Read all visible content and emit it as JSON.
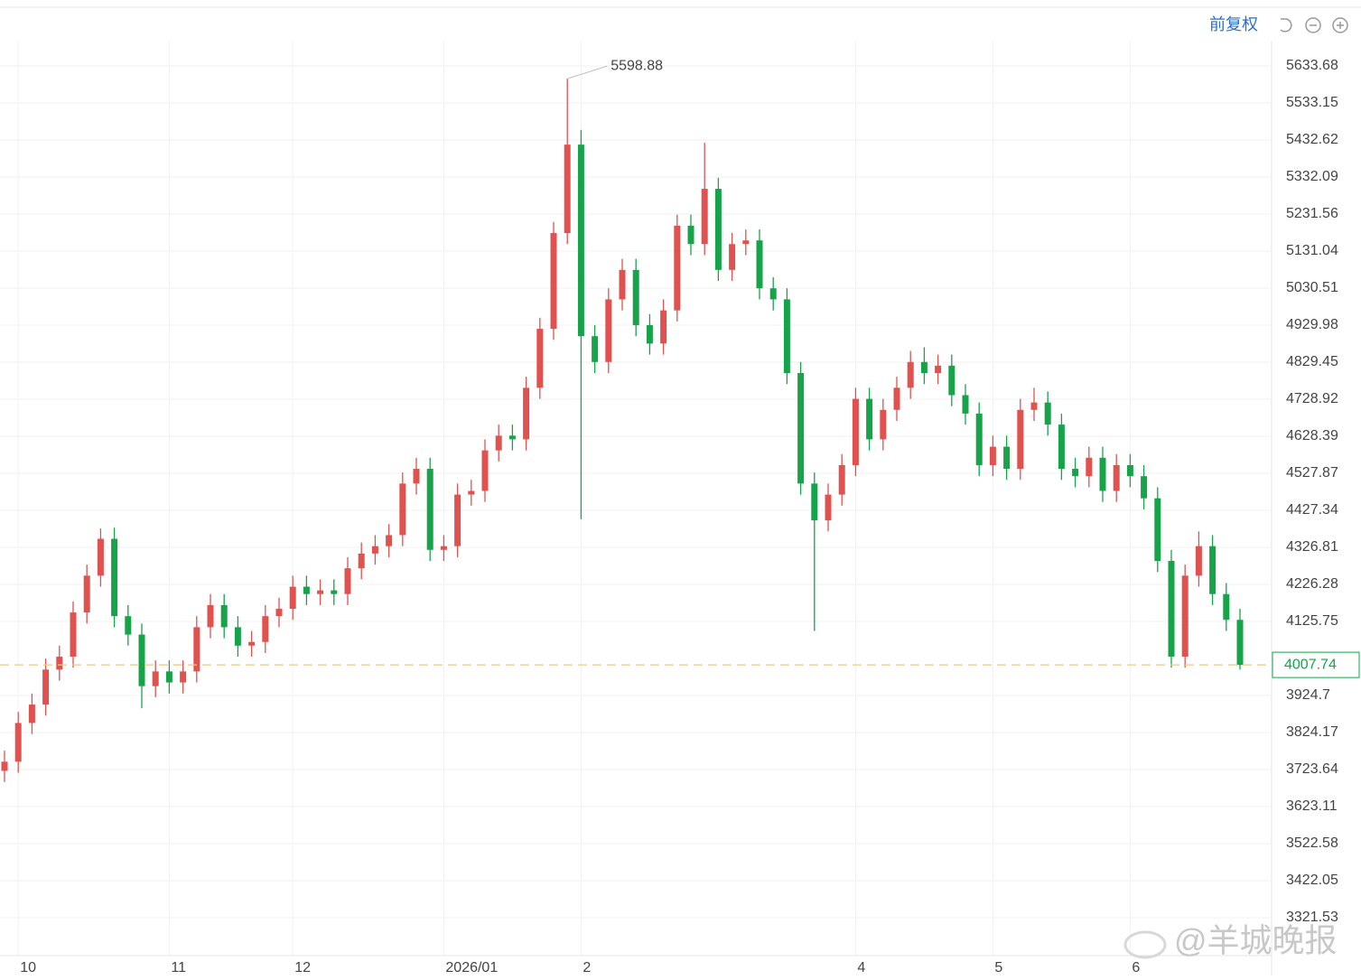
{
  "toolbar": {
    "adjust": "前复权"
  },
  "watermark": "@羊城晚报",
  "chart_data": {
    "type": "candlestick",
    "up_color": "#e0524f",
    "down_color": "#16a34a",
    "ylim": [
      3218.5,
      5702.3
    ],
    "yticks": [
      5633.68,
      5533.15,
      5432.62,
      5332.09,
      5231.56,
      5131.04,
      5030.51,
      4929.98,
      4829.45,
      4728.92,
      4628.39,
      4527.87,
      4427.34,
      4326.81,
      4226.28,
      4125.75,
      3924.7,
      3824.17,
      3723.64,
      3623.11,
      3522.58,
      3422.05,
      3321.53
    ],
    "xticks": [
      {
        "value": 1,
        "label": "10"
      },
      {
        "value": 12,
        "label": "11"
      },
      {
        "value": 21,
        "label": "12"
      },
      {
        "value": 32,
        "label": "2026/01"
      },
      {
        "value": 42,
        "label": "2"
      },
      {
        "value": 62,
        "label": "4"
      },
      {
        "value": 72,
        "label": "5"
      },
      {
        "value": 82,
        "label": "6"
      }
    ],
    "grid": true,
    "open": [
      3720,
      3745,
      3850,
      3900,
      3995,
      4030,
      4150,
      4250,
      4350,
      4140,
      4090,
      3950,
      3990,
      3960,
      3990,
      4110,
      4170,
      4110,
      4060,
      4070,
      4140,
      4160,
      4220,
      4200,
      4210,
      4200,
      4270,
      4310,
      4330,
      4360,
      4500,
      4540,
      4320,
      4330,
      4470,
      4480,
      4590,
      4630,
      4620,
      4760,
      4920,
      5180,
      5420,
      4900,
      4830,
      5000,
      5080,
      4930,
      4880,
      4970,
      5200,
      5150,
      5300,
      5080,
      5150,
      5160,
      5030,
      5000,
      4800,
      4500,
      4400,
      4470,
      4550,
      4730,
      4620,
      4700,
      4760,
      4830,
      4800,
      4820,
      4740,
      4690,
      4550,
      4600,
      4540,
      4700,
      4720,
      4660,
      4540,
      4520,
      4570,
      4480,
      4550,
      4520,
      4460,
      4290,
      4030,
      4250,
      4330,
      4200,
      4130
    ],
    "high": [
      3775,
      3880,
      3930,
      4025,
      4060,
      4180,
      4280,
      4378,
      4380,
      4170,
      4120,
      4020,
      4020,
      4020,
      4140,
      4200,
      4200,
      4140,
      4100,
      4170,
      4190,
      4250,
      4250,
      4240,
      4240,
      4300,
      4340,
      4360,
      4390,
      4530,
      4570,
      4570,
      4360,
      4500,
      4510,
      4620,
      4660,
      4660,
      4790,
      4950,
      5210,
      5598.88,
      5460,
      4930,
      5030,
      5110,
      5110,
      4960,
      5000,
      5230,
      5230,
      5425,
      5330,
      5180,
      5190,
      5190,
      5060,
      5030,
      4830,
      4530,
      4500,
      4580,
      4760,
      4760,
      4730,
      4790,
      4860,
      4870,
      4850,
      4850,
      4770,
      4720,
      4630,
      4630,
      4730,
      4760,
      4750,
      4690,
      4570,
      4600,
      4600,
      4580,
      4580,
      4550,
      4490,
      4320,
      4280,
      4370,
      4360,
      4230,
      4160
    ],
    "low": [
      3690,
      3715,
      3820,
      3870,
      3965,
      4000,
      4120,
      4220,
      4110,
      4060,
      3890,
      3920,
      3930,
      3930,
      3960,
      4080,
      4080,
      4030,
      4030,
      4040,
      4110,
      4130,
      4170,
      4170,
      4170,
      4170,
      4240,
      4280,
      4300,
      4330,
      4470,
      4290,
      4290,
      4300,
      4440,
      4450,
      4560,
      4590,
      4590,
      4730,
      4890,
      5150,
      4403,
      4800,
      4800,
      4970,
      4900,
      4850,
      4850,
      4940,
      5120,
      5120,
      5050,
      5050,
      5120,
      5000,
      4970,
      4770,
      4470,
      4100,
      4370,
      4440,
      4520,
      4590,
      4590,
      4670,
      4730,
      4770,
      4770,
      4710,
      4660,
      4520,
      4520,
      4510,
      4510,
      4670,
      4630,
      4510,
      4490,
      4490,
      4450,
      4450,
      4490,
      4430,
      4260,
      4000,
      4000,
      4220,
      4170,
      4100,
      3995
    ],
    "close": [
      3745,
      3850,
      3900,
      3995,
      4030,
      4150,
      4250,
      4350,
      4140,
      4090,
      3950,
      3990,
      3960,
      3990,
      4110,
      4170,
      4110,
      4060,
      4070,
      4140,
      4160,
      4220,
      4200,
      4210,
      4200,
      4270,
      4310,
      4330,
      4360,
      4500,
      4540,
      4320,
      4330,
      4470,
      4480,
      4590,
      4630,
      4620,
      4760,
      4920,
      5180,
      5420,
      4900,
      4830,
      5000,
      5080,
      4930,
      4880,
      4970,
      5200,
      5150,
      5300,
      5080,
      5150,
      5160,
      5030,
      5000,
      4800,
      4500,
      4400,
      4470,
      4550,
      4730,
      4620,
      4700,
      4760,
      4830,
      4800,
      4820,
      4740,
      4690,
      4550,
      4600,
      4540,
      4700,
      4720,
      4660,
      4540,
      4520,
      4570,
      4480,
      4550,
      4520,
      4460,
      4290,
      4030,
      4250,
      4330,
      4200,
      4130,
      4007.74
    ]
  }
}
